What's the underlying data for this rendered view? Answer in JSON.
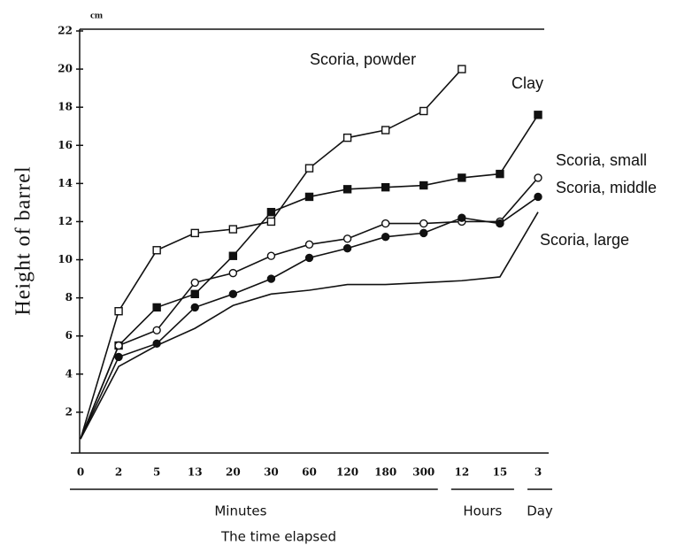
{
  "chart_data": {
    "type": "line",
    "y_label": "Height of barrel",
    "x_label": "The time elapsed",
    "y_unit": "cm",
    "categories": [
      "0",
      "2",
      "5",
      "13",
      "20",
      "30",
      "60",
      "120",
      "180",
      "300",
      "12",
      "15",
      "3"
    ],
    "groups": [
      {
        "label": "Minutes",
        "count": 10
      },
      {
        "label": "Hours",
        "count": 2
      },
      {
        "label": "Day",
        "count": 1
      }
    ],
    "ylim": [
      0,
      22
    ],
    "yticks": [
      2,
      4,
      6,
      8,
      10,
      12,
      14,
      16,
      18,
      20,
      22
    ],
    "series": [
      {
        "name": "Scoria, powder",
        "color": "#111111",
        "marker": "square-open",
        "values": [
          0.6,
          7.3,
          10.5,
          11.4,
          11.6,
          12.0,
          14.8,
          16.4,
          16.8,
          17.8,
          20.0,
          null,
          null
        ]
      },
      {
        "name": "Clay",
        "color": "#111111",
        "marker": "square-filled",
        "values": [
          0.6,
          5.5,
          7.5,
          8.2,
          10.2,
          12.5,
          13.3,
          13.7,
          13.8,
          13.9,
          14.3,
          14.5,
          17.6
        ]
      },
      {
        "name": "Scoria, small",
        "color": "#111111",
        "marker": "circle-open",
        "values": [
          0.6,
          5.5,
          6.3,
          8.8,
          9.3,
          10.2,
          10.8,
          11.1,
          11.9,
          11.9,
          12.0,
          12.0,
          14.3
        ]
      },
      {
        "name": "Scoria, middle",
        "color": "#111111",
        "marker": "circle-filled",
        "values": [
          0.6,
          4.9,
          5.6,
          7.5,
          8.2,
          9.0,
          10.1,
          10.6,
          11.2,
          11.4,
          12.2,
          11.9,
          13.3
        ]
      },
      {
        "name": "Scoria, large",
        "color": "#111111",
        "marker": "none",
        "values": [
          0.6,
          4.4,
          5.5,
          6.4,
          7.6,
          8.2,
          8.4,
          8.7,
          8.7,
          8.8,
          8.9,
          9.1,
          12.5
        ]
      }
    ]
  }
}
